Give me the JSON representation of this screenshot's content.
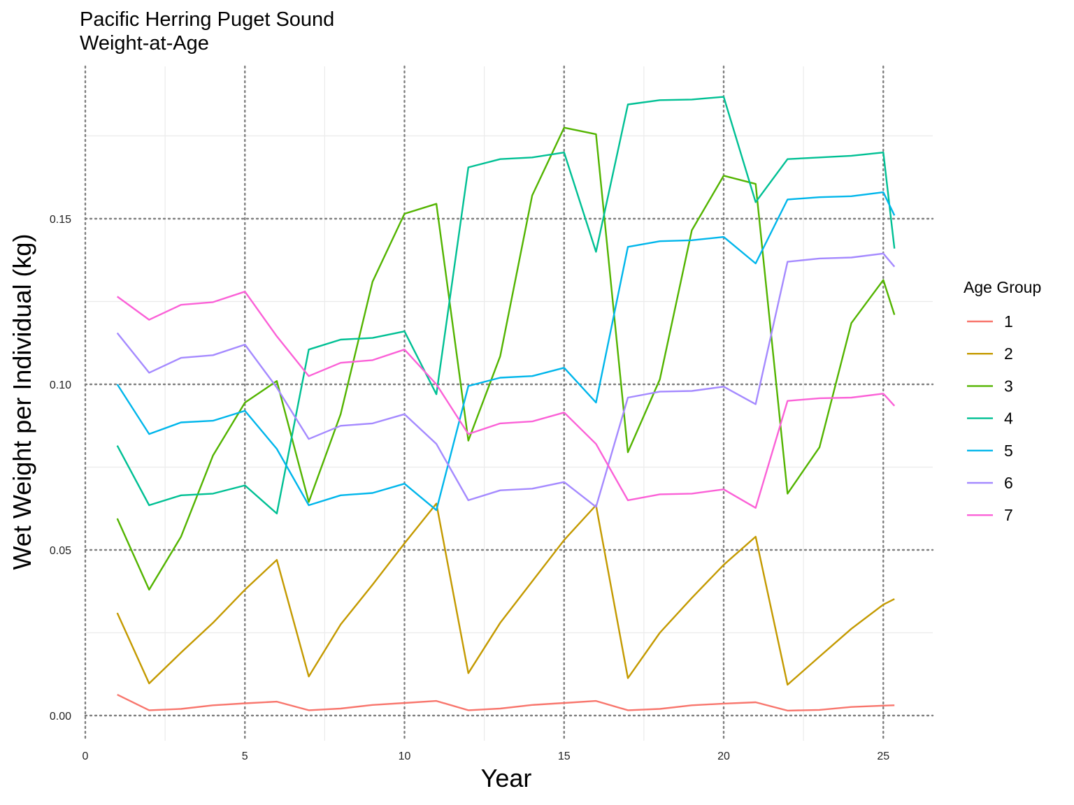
{
  "chart_data": {
    "type": "line",
    "title": "Pacific Herring Puget Sound",
    "subtitle": "Weight-at-Age",
    "xlabel": "Year",
    "ylabel": "Wet Weight per Individual (kg)",
    "xlim": [
      0,
      26.3
    ],
    "ylim": [
      -0.008,
      0.196
    ],
    "x_ticks": [
      0,
      5,
      10,
      15,
      20,
      25
    ],
    "y_ticks": [
      0.0,
      0.05,
      0.1,
      0.15
    ],
    "y_tick_labels": [
      "0.00",
      "0.05",
      "0.10",
      "0.15"
    ],
    "grid": true,
    "legend": {
      "title": "Age Group",
      "position": "right"
    },
    "x": [
      1,
      2,
      3,
      4,
      5,
      6,
      7,
      8,
      9,
      10,
      11,
      12,
      13,
      14,
      15,
      16,
      17,
      18,
      19,
      20,
      21,
      22,
      23,
      24,
      25,
      25.35
    ],
    "series": [
      {
        "name": "1",
        "color": "#F8766D",
        "values": [
          0.0063,
          0.0016,
          0.002,
          0.0031,
          0.0037,
          0.0042,
          0.0016,
          0.0021,
          0.0032,
          0.0038,
          0.0044,
          0.0016,
          0.0021,
          0.0032,
          0.0038,
          0.0044,
          0.0016,
          0.002,
          0.0031,
          0.0036,
          0.004,
          0.0015,
          0.0017,
          0.0026,
          0.003,
          0.0031
        ]
      },
      {
        "name": "2",
        "color": "#C49A00",
        "values": [
          0.031,
          0.0097,
          0.019,
          0.028,
          0.038,
          0.047,
          0.0118,
          0.0275,
          0.0395,
          0.052,
          0.064,
          0.0128,
          0.028,
          0.0405,
          0.053,
          0.0635,
          0.0113,
          0.025,
          0.0355,
          0.0455,
          0.054,
          0.0093,
          0.0178,
          0.0262,
          0.0335,
          0.0352
        ]
      },
      {
        "name": "3",
        "color": "#53B400",
        "values": [
          0.0595,
          0.038,
          0.054,
          0.0785,
          0.0945,
          0.101,
          0.0645,
          0.091,
          0.131,
          0.1515,
          0.1545,
          0.083,
          0.1085,
          0.157,
          0.1775,
          0.1755,
          0.0795,
          0.1015,
          0.1465,
          0.163,
          0.1605,
          0.067,
          0.081,
          0.1185,
          0.1315,
          0.121
        ]
      },
      {
        "name": "4",
        "color": "#00C094",
        "values": [
          0.0815,
          0.0635,
          0.0665,
          0.067,
          0.0695,
          0.061,
          0.1105,
          0.1135,
          0.114,
          0.116,
          0.097,
          0.1655,
          0.168,
          0.1685,
          0.17,
          0.14,
          0.1845,
          0.1858,
          0.186,
          0.1868,
          0.155,
          0.168,
          0.1685,
          0.169,
          0.17,
          0.141
        ]
      },
      {
        "name": "5",
        "color": "#00B6EB",
        "values": [
          0.1,
          0.085,
          0.0885,
          0.089,
          0.092,
          0.0805,
          0.0635,
          0.0665,
          0.0672,
          0.07,
          0.062,
          0.0995,
          0.102,
          0.1025,
          0.105,
          0.0945,
          0.1415,
          0.1432,
          0.1435,
          0.1445,
          0.1365,
          0.1558,
          0.1565,
          0.1568,
          0.158,
          0.151
        ]
      },
      {
        "name": "6",
        "color": "#A58AFF",
        "values": [
          0.1155,
          0.1035,
          0.108,
          0.1088,
          0.112,
          0.099,
          0.0835,
          0.0875,
          0.0882,
          0.091,
          0.082,
          0.065,
          0.068,
          0.0685,
          0.0705,
          0.063,
          0.096,
          0.0978,
          0.098,
          0.0993,
          0.094,
          0.137,
          0.138,
          0.1383,
          0.1395,
          0.1355
        ]
      },
      {
        "name": "7",
        "color": "#FB61D7",
        "values": [
          0.1265,
          0.1195,
          0.124,
          0.1248,
          0.128,
          0.1145,
          0.1025,
          0.1065,
          0.1073,
          0.1105,
          0.1,
          0.085,
          0.0882,
          0.0888,
          0.0915,
          0.082,
          0.065,
          0.0668,
          0.067,
          0.0683,
          0.0627,
          0.095,
          0.0958,
          0.096,
          0.0972,
          0.0935
        ]
      }
    ]
  }
}
